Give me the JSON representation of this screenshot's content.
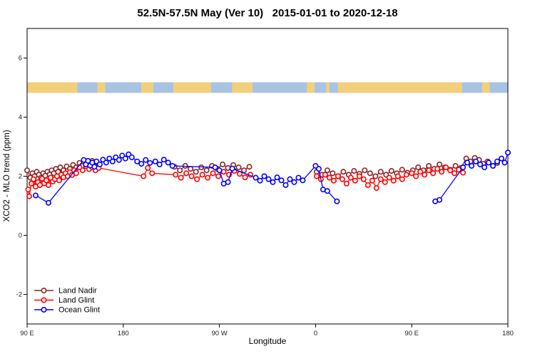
{
  "chart_data": {
    "type": "scatter",
    "title": "52.5N-57.5N May (Ver 10)   2015-01-01 to 2020-12-18",
    "xlabel": "Longitude",
    "ylabel": "XCO2 - MLO trend (ppm)",
    "x_axis": {
      "range_deg": [
        0,
        450
      ],
      "ticks": [
        {
          "d": 0,
          "label": "90 E"
        },
        {
          "d": 90,
          "label": "180"
        },
        {
          "d": 180,
          "label": "90 W"
        },
        {
          "d": 270,
          "label": "0"
        },
        {
          "d": 360,
          "label": "90 E"
        },
        {
          "d": 450,
          "label": "180"
        }
      ]
    },
    "y_axis": {
      "range": [
        -3,
        7
      ],
      "ticks": [
        -2,
        0,
        2,
        4,
        6
      ]
    },
    "map_band": {
      "y_center": 5,
      "half_height": 0.18,
      "land_color": "#F2CF7A",
      "ocean_color": "#A9C3E2",
      "segments": [
        {
          "type": "land",
          "from": 0,
          "to": 47
        },
        {
          "type": "ocean",
          "from": 47,
          "to": 66
        },
        {
          "type": "land",
          "from": 66,
          "to": 73
        },
        {
          "type": "ocean",
          "from": 73,
          "to": 107
        },
        {
          "type": "land",
          "from": 107,
          "to": 118
        },
        {
          "type": "ocean",
          "from": 118,
          "to": 137
        },
        {
          "type": "land",
          "from": 137,
          "to": 172
        },
        {
          "type": "ocean",
          "from": 172,
          "to": 192
        },
        {
          "type": "land",
          "from": 192,
          "to": 211
        },
        {
          "type": "ocean",
          "from": 211,
          "to": 262
        },
        {
          "type": "land",
          "from": 262,
          "to": 269
        },
        {
          "type": "ocean",
          "from": 269,
          "to": 280
        },
        {
          "type": "land",
          "from": 280,
          "to": 283
        },
        {
          "type": "ocean",
          "from": 283,
          "to": 291
        },
        {
          "type": "land",
          "from": 291,
          "to": 407
        },
        {
          "type": "ocean",
          "from": 407,
          "to": 426
        },
        {
          "type": "land",
          "from": 426,
          "to": 433
        },
        {
          "type": "ocean",
          "from": 433,
          "to": 450
        }
      ]
    },
    "series": [
      {
        "name": "Land Nadir",
        "color": "#8B2323",
        "points": [
          [
            0,
            2.2
          ],
          [
            3,
            1.95
          ],
          [
            5,
            2.1
          ],
          [
            7,
            2.0
          ],
          [
            9,
            2.15
          ],
          [
            11,
            2.05
          ],
          [
            13,
            1.95
          ],
          [
            15,
            2.1
          ],
          [
            17,
            2.02
          ],
          [
            19,
            2.15
          ],
          [
            21,
            2.06
          ],
          [
            23,
            2.2
          ],
          [
            25,
            2.1
          ],
          [
            27,
            2.25
          ],
          [
            29,
            2.15
          ],
          [
            31,
            2.3
          ],
          [
            34,
            2.2
          ],
          [
            37,
            2.33
          ],
          [
            40,
            2.25
          ],
          [
            43,
            2.38
          ],
          [
            46,
            2.3
          ],
          [
            49,
            2.45
          ],
          [
            52,
            2.35
          ],
          [
            55,
            2.5
          ],
          [
            58,
            2.4
          ],
          [
            61,
            2.52
          ],
          [
            64,
            2.42
          ],
          [
            67,
            2.35
          ],
          [
            138,
            2.32
          ],
          [
            143,
            2.2
          ],
          [
            148,
            2.35
          ],
          [
            153,
            2.25
          ],
          [
            158,
            2.15
          ],
          [
            163,
            2.3
          ],
          [
            168,
            2.2
          ],
          [
            173,
            2.35
          ],
          [
            178,
            2.25
          ],
          [
            183,
            2.4
          ],
          [
            188,
            2.28
          ],
          [
            193,
            2.38
          ],
          [
            198,
            2.3
          ],
          [
            203,
            2.2
          ],
          [
            208,
            2.32
          ],
          [
            271,
            2.15
          ],
          [
            276,
            2.05
          ],
          [
            281,
            2.2
          ],
          [
            286,
            2.1
          ],
          [
            291,
            2.0
          ],
          [
            296,
            2.15
          ],
          [
            301,
            2.05
          ],
          [
            306,
            2.18
          ],
          [
            311,
            2.08
          ],
          [
            316,
            2.2
          ],
          [
            321,
            2.1
          ],
          [
            326,
            2.0
          ],
          [
            331,
            2.15
          ],
          [
            336,
            2.05
          ],
          [
            341,
            2.18
          ],
          [
            346,
            2.1
          ],
          [
            351,
            2.22
          ],
          [
            356,
            2.12
          ],
          [
            361,
            2.2
          ],
          [
            366,
            2.3
          ],
          [
            371,
            2.2
          ],
          [
            376,
            2.35
          ],
          [
            381,
            2.25
          ],
          [
            386,
            2.4
          ],
          [
            391,
            2.3
          ],
          [
            396,
            2.22
          ],
          [
            401,
            2.35
          ],
          [
            406,
            2.28
          ],
          [
            411,
            2.6
          ],
          [
            415,
            2.5
          ],
          [
            419,
            2.62
          ],
          [
            423,
            2.55
          ],
          [
            427,
            2.42
          ],
          [
            431,
            2.5
          ],
          [
            436,
            2.35
          ],
          [
            440,
            2.45
          ]
        ]
      },
      {
        "name": "Land Glint",
        "color": "#FF0000",
        "points": [
          [
            1,
            1.55
          ],
          [
            2,
            1.32
          ],
          [
            4,
            1.75
          ],
          [
            6,
            1.9
          ],
          [
            8,
            1.65
          ],
          [
            10,
            1.8
          ],
          [
            12,
            1.7
          ],
          [
            14,
            1.92
          ],
          [
            16,
            1.76
          ],
          [
            18,
            1.86
          ],
          [
            20,
            1.7
          ],
          [
            22,
            1.95
          ],
          [
            24,
            1.82
          ],
          [
            26,
            1.9
          ],
          [
            28,
            2.0
          ],
          [
            30,
            1.86
          ],
          [
            32,
            2.05
          ],
          [
            34,
            1.96
          ],
          [
            36,
            2.1
          ],
          [
            38,
            2.0
          ],
          [
            40,
            2.14
          ],
          [
            42,
            2.04
          ],
          [
            44,
            2.2
          ],
          [
            46,
            2.1
          ],
          [
            49,
            2.3
          ],
          [
            52,
            2.2
          ],
          [
            55,
            2.34
          ],
          [
            58,
            2.24
          ],
          [
            61,
            2.3
          ],
          [
            64,
            2.2
          ],
          [
            67,
            2.28
          ],
          [
            109,
            2.0
          ],
          [
            113,
            2.28
          ],
          [
            117,
            2.1
          ],
          [
            139,
            2.05
          ],
          [
            144,
            1.95
          ],
          [
            149,
            2.1
          ],
          [
            154,
            2.0
          ],
          [
            159,
            1.9
          ],
          [
            164,
            2.05
          ],
          [
            169,
            1.95
          ],
          [
            174,
            2.1
          ],
          [
            179,
            2.0
          ],
          [
            184,
            2.15
          ],
          [
            189,
            2.05
          ],
          [
            194,
            2.18
          ],
          [
            199,
            2.08
          ],
          [
            204,
            1.96
          ],
          [
            209,
            2.05
          ],
          [
            271,
            2.0
          ],
          [
            275,
            1.9
          ],
          [
            279,
            2.05
          ],
          [
            283,
            1.95
          ],
          [
            287,
            1.85
          ],
          [
            291,
            2.0
          ],
          [
            295,
            1.9
          ],
          [
            299,
            1.75
          ],
          [
            303,
            1.95
          ],
          [
            307,
            1.85
          ],
          [
            311,
            2.0
          ],
          [
            315,
            1.9
          ],
          [
            319,
            1.7
          ],
          [
            323,
            1.85
          ],
          [
            327,
            1.6
          ],
          [
            331,
            1.9
          ],
          [
            335,
            1.8
          ],
          [
            339,
            1.95
          ],
          [
            343,
            1.85
          ],
          [
            347,
            2.0
          ],
          [
            351,
            1.9
          ],
          [
            355,
            2.05
          ],
          [
            360,
            2.1
          ],
          [
            364,
            2.0
          ],
          [
            368,
            2.15
          ],
          [
            372,
            2.05
          ],
          [
            376,
            2.2
          ],
          [
            380,
            2.1
          ],
          [
            384,
            2.25
          ],
          [
            388,
            2.15
          ],
          [
            392,
            2.3
          ],
          [
            396,
            2.2
          ],
          [
            400,
            2.1
          ],
          [
            404,
            2.22
          ],
          [
            408,
            2.12
          ]
        ]
      },
      {
        "name": "Ocean Glint",
        "color": "#0000FF",
        "points": [
          [
            8,
            1.35
          ],
          [
            20,
            1.1
          ],
          [
            53,
            2.55
          ],
          [
            55,
            2.4
          ],
          [
            57,
            2.52
          ],
          [
            59,
            2.36
          ],
          [
            61,
            2.46
          ],
          [
            63,
            2.32
          ],
          [
            65,
            2.5
          ],
          [
            68,
            2.4
          ],
          [
            71,
            2.56
          ],
          [
            74,
            2.46
          ],
          [
            77,
            2.6
          ],
          [
            80,
            2.5
          ],
          [
            83,
            2.64
          ],
          [
            86,
            2.55
          ],
          [
            89,
            2.7
          ],
          [
            92,
            2.6
          ],
          [
            95,
            2.74
          ],
          [
            98,
            2.64
          ],
          [
            103,
            2.5
          ],
          [
            107,
            2.42
          ],
          [
            111,
            2.55
          ],
          [
            115,
            2.45
          ],
          [
            120,
            2.5
          ],
          [
            124,
            2.4
          ],
          [
            128,
            2.56
          ],
          [
            132,
            2.46
          ],
          [
            136,
            2.35
          ],
          [
            176,
            2.3
          ],
          [
            180,
            2.2
          ],
          [
            184,
            1.75
          ],
          [
            188,
            1.8
          ],
          [
            192,
            2.26
          ],
          [
            214,
            1.95
          ],
          [
            218,
            1.85
          ],
          [
            222,
            2.0
          ],
          [
            226,
            1.9
          ],
          [
            230,
            1.8
          ],
          [
            234,
            1.96
          ],
          [
            238,
            1.86
          ],
          [
            242,
            1.7
          ],
          [
            246,
            1.9
          ],
          [
            250,
            1.8
          ],
          [
            254,
            1.95
          ],
          [
            258,
            1.86
          ],
          [
            270,
            2.35
          ],
          [
            273,
            2.25
          ],
          [
            277,
            1.55
          ],
          [
            281,
            1.5
          ],
          [
            290,
            1.15
          ],
          [
            382,
            1.15
          ],
          [
            386,
            1.2
          ],
          [
            408,
            2.3
          ],
          [
            412,
            2.46
          ],
          [
            416,
            2.35
          ],
          [
            420,
            2.5
          ],
          [
            424,
            2.4
          ],
          [
            428,
            2.3
          ],
          [
            432,
            2.46
          ],
          [
            436,
            2.35
          ],
          [
            440,
            2.5
          ],
          [
            444,
            2.6
          ],
          [
            447,
            2.46
          ],
          [
            450,
            2.8
          ]
        ]
      }
    ],
    "legend": {
      "position": "bottom-left"
    }
  }
}
